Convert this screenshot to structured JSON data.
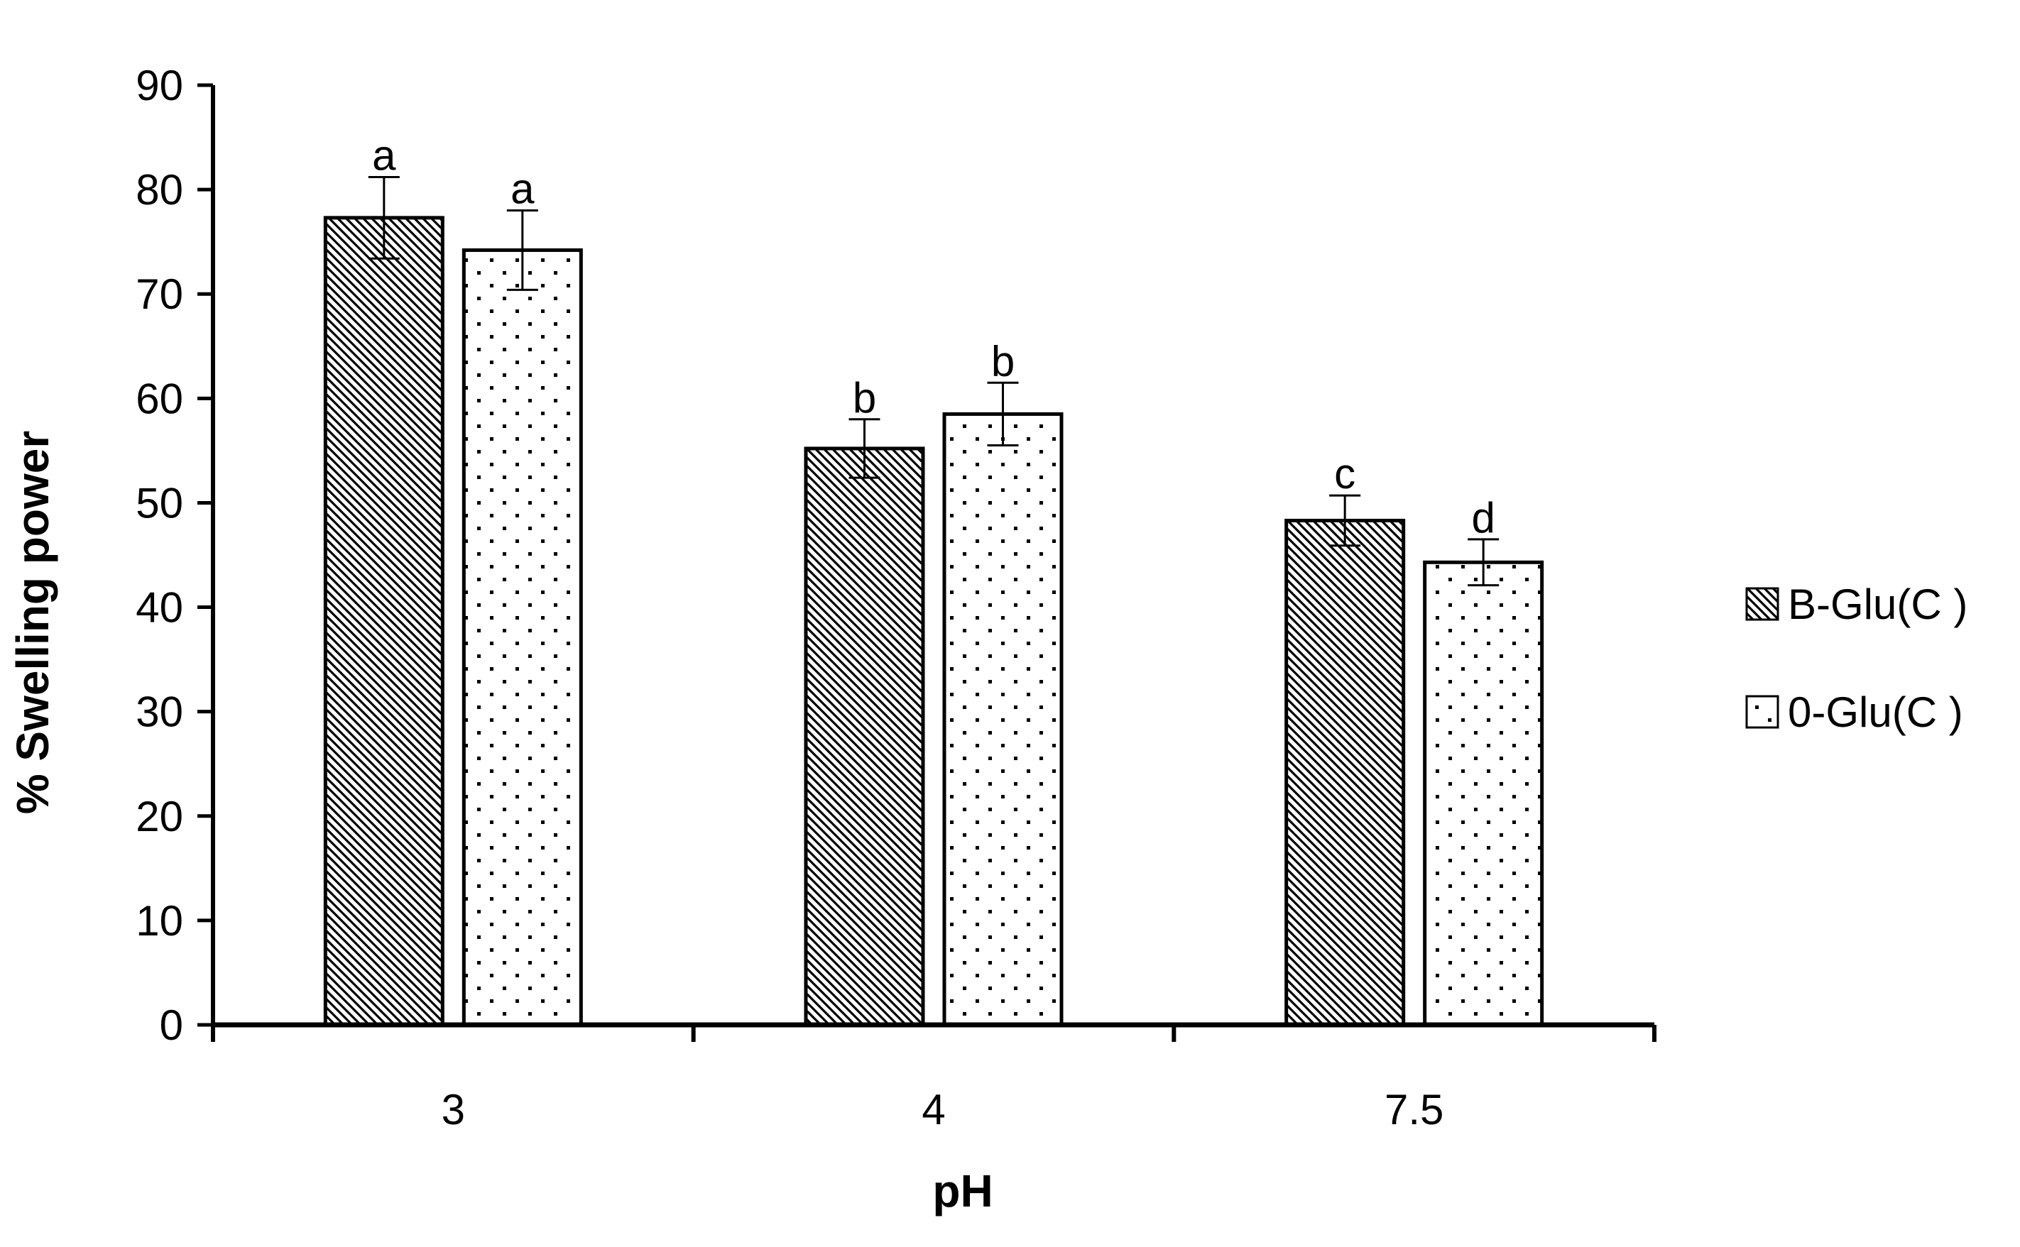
{
  "chart_data": {
    "type": "bar",
    "title": "",
    "xlabel": "pH",
    "ylabel": "% Swelling power",
    "categories": [
      "3",
      "4",
      "7.5"
    ],
    "ylim": [
      0,
      90
    ],
    "yticks": [
      0,
      10,
      20,
      30,
      40,
      50,
      60,
      70,
      80,
      90
    ],
    "grid": false,
    "legend_position": "right",
    "series": [
      {
        "name": "B-Glu(C )",
        "pattern": "diagonal-hatch",
        "values": [
          77.3,
          55.2,
          48.3
        ],
        "errors": [
          3.9,
          2.8,
          2.4
        ],
        "labels": [
          "a",
          "b",
          "c"
        ]
      },
      {
        "name": "0-Glu(C )",
        "pattern": "dots",
        "values": [
          74.2,
          58.5,
          44.3
        ],
        "errors": [
          3.8,
          3.0,
          2.2
        ],
        "labels": [
          "a",
          "b",
          "d"
        ]
      }
    ],
    "colors": {
      "bar_fill": "#ffffff",
      "bar_stroke": "#000000",
      "pattern_ink": "#000000"
    }
  }
}
